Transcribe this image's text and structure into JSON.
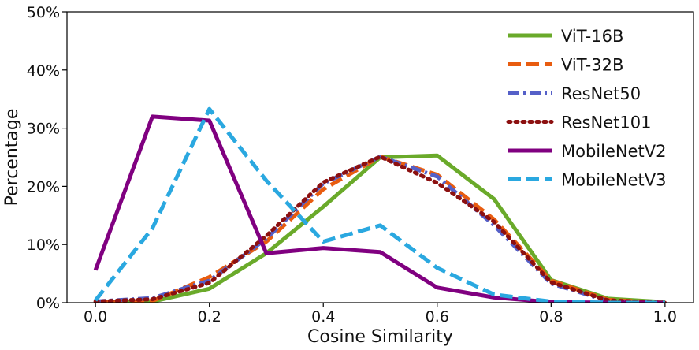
{
  "chart_data": {
    "type": "line",
    "title": "",
    "xlabel": "Cosine Similarity",
    "ylabel": "Percentage",
    "xlim": [
      -0.05,
      1.05
    ],
    "ylim": [
      0,
      50
    ],
    "grid": false,
    "legend_position": "top-right",
    "x_ticks": [
      0.0,
      0.2,
      0.4,
      0.6,
      0.8,
      1.0
    ],
    "x_tick_labels": [
      "0.0",
      "0.2",
      "0.4",
      "0.6",
      "0.8",
      "1.0"
    ],
    "y_ticks": [
      0,
      10,
      20,
      30,
      40,
      50
    ],
    "y_tick_labels": [
      "0%",
      "10%",
      "20%",
      "30%",
      "40%",
      "50%"
    ],
    "x": [
      0.0,
      0.1,
      0.2,
      0.3,
      0.4,
      0.5,
      0.6,
      0.7,
      0.8,
      0.9,
      1.0
    ],
    "series": [
      {
        "name": "ViT-16B",
        "color": "#6aaa2a",
        "style": "solid",
        "values": [
          0.1,
          0.2,
          2.4,
          8.5,
          16.5,
          25.0,
          25.3,
          17.8,
          3.9,
          0.7,
          0.1
        ]
      },
      {
        "name": "ViT-32B",
        "color": "#e85c10",
        "style": "dashed",
        "values": [
          0.1,
          0.3,
          4.4,
          10.5,
          19.5,
          25.1,
          22.0,
          14.3,
          3.8,
          0.5,
          0.0
        ]
      },
      {
        "name": "ResNet50",
        "color": "#5560c8",
        "style": "dashdot",
        "values": [
          0.2,
          0.8,
          3.8,
          11.0,
          20.5,
          25.1,
          21.7,
          13.3,
          3.3,
          0.3,
          0.0
        ]
      },
      {
        "name": "ResNet101",
        "color": "#8c1010",
        "style": "dotted",
        "values": [
          0.2,
          0.6,
          3.4,
          11.5,
          20.7,
          25.1,
          20.6,
          13.9,
          3.5,
          0.4,
          0.0
        ]
      },
      {
        "name": "MobileNetV2",
        "color": "#800080",
        "style": "solid",
        "values": [
          5.6,
          32.0,
          31.3,
          8.5,
          9.4,
          8.7,
          2.6,
          0.9,
          0.1,
          0.0,
          0.0
        ]
      },
      {
        "name": "MobileNetV3",
        "color": "#2aa8e0",
        "style": "dashed",
        "values": [
          0.4,
          12.8,
          33.3,
          21.0,
          10.5,
          13.3,
          6.0,
          1.4,
          0.2,
          0.0,
          0.0
        ]
      }
    ]
  }
}
